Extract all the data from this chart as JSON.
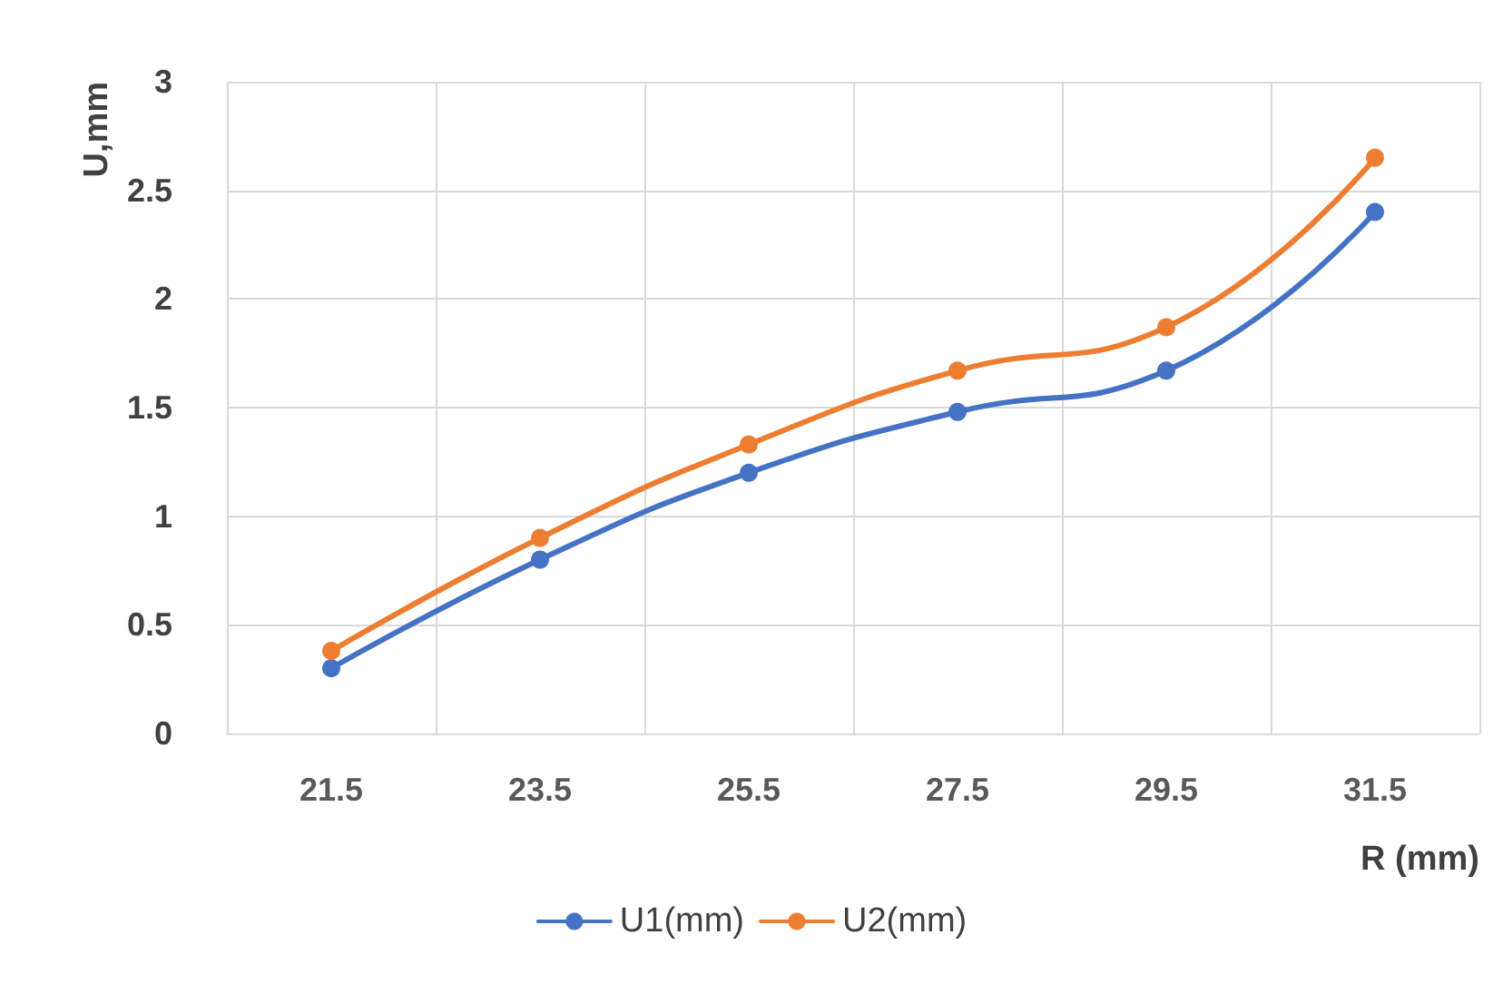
{
  "chart_data": {
    "type": "line",
    "xlabel": "R (mm)",
    "ylabel": "U,mm",
    "categories": [
      "21.5",
      "23.5",
      "25.5",
      "27.5",
      "29.5",
      "31.5"
    ],
    "series": [
      {
        "name": "U1(mm)",
        "color": "#4472c4",
        "values": [
          0.3,
          0.8,
          1.2,
          1.48,
          1.67,
          2.4
        ]
      },
      {
        "name": "U2(mm)",
        "color": "#ed7d31",
        "values": [
          0.38,
          0.9,
          1.33,
          1.67,
          1.87,
          2.65
        ]
      }
    ],
    "ylim": [
      0,
      3
    ],
    "yticks": [
      0,
      0.5,
      1,
      1.5,
      2,
      2.5,
      3
    ],
    "grid": true,
    "legend": "bottom",
    "marker": "circle",
    "line_style": "solid"
  }
}
